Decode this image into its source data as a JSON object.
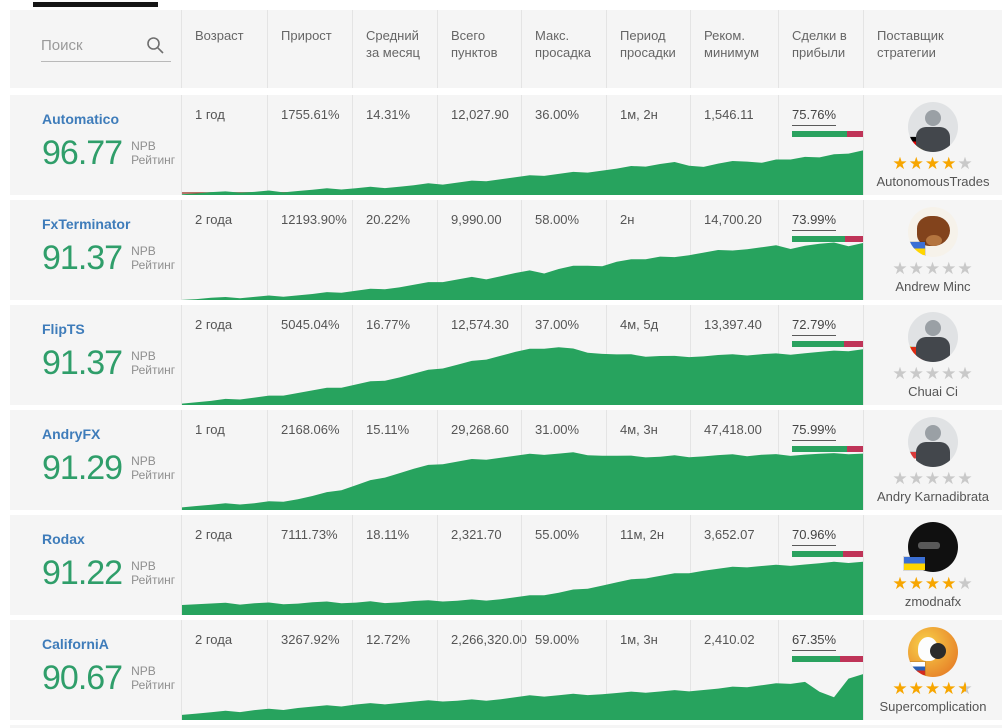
{
  "search": {
    "placeholder": "Поиск"
  },
  "labels": {
    "npb": "NPB",
    "rating": "Рейтинг"
  },
  "columns": [
    "Возраст",
    "Прирост",
    "Средний за месяц",
    "Всего пунктов",
    "Макс. просадка",
    "Период просадки",
    "Реком. минимум",
    "Сделки в прибыли",
    "Поставщик стратегии"
  ],
  "colors": {
    "chart_green": "#27a35e",
    "rating_green": "#2f9e6a",
    "link_blue": "#3e7cba",
    "bar_green": "#2aa25f",
    "bar_red": "#bf3458",
    "star_orange": "#f7a600",
    "row_bg": "#f5f5f5"
  },
  "rows": [
    {
      "name": "Automatico",
      "rating": "96.77",
      "age": "1 год",
      "growth": "1755.61%",
      "monthly": "14.31%",
      "total_pips": "12,027.90",
      "max_drawdown": "36.00%",
      "drawdown_period": "1м, 2н",
      "recommended_min": "1,546.11",
      "profit_trades": "75.76%",
      "profit_trades_pct": 75.76,
      "provider": {
        "name": "AutonomousTrades",
        "stars": 4,
        "flag": "germany",
        "avatar": "suit"
      }
    },
    {
      "name": "FxTerminator",
      "rating": "91.37",
      "age": "2 года",
      "growth": "12193.90%",
      "monthly": "20.22%",
      "total_pips": "9,990.00",
      "max_drawdown": "58.00%",
      "drawdown_period": "2н",
      "recommended_min": "14,700.20",
      "profit_trades": "73.99%",
      "profit_trades_pct": 73.99,
      "provider": {
        "name": "Andrew Minc",
        "stars": 0,
        "flag": "ukraine",
        "avatar": "bull"
      }
    },
    {
      "name": "FlipTS",
      "rating": "91.37",
      "age": "2 года",
      "growth": "5045.04%",
      "monthly": "16.77%",
      "total_pips": "12,574.30",
      "max_drawdown": "37.00%",
      "drawdown_period": "4м, 5д",
      "recommended_min": "13,397.40",
      "profit_trades": "72.79%",
      "profit_trades_pct": 72.79,
      "provider": {
        "name": "Chuai Ci",
        "stars": 0,
        "flag": "china",
        "avatar": "suit"
      }
    },
    {
      "name": "AndryFX",
      "rating": "91.29",
      "age": "1 год",
      "growth": "2168.06%",
      "monthly": "15.11%",
      "total_pips": "29,268.60",
      "max_drawdown": "31.00%",
      "drawdown_period": "4м, 3н",
      "recommended_min": "47,418.00",
      "profit_trades": "75.99%",
      "profit_trades_pct": 75.99,
      "provider": {
        "name": "Andry Karnadibrata",
        "stars": 0,
        "flag": "indonesia",
        "avatar": "suit"
      }
    },
    {
      "name": "Rodax",
      "rating": "91.22",
      "age": "2 года",
      "growth": "7111.73%",
      "monthly": "18.11%",
      "total_pips": "2,321.70",
      "max_drawdown": "55.00%",
      "drawdown_period": "11м, 2н",
      "recommended_min": "3,652.07",
      "profit_trades": "70.96%",
      "profit_trades_pct": 70.96,
      "provider": {
        "name": "zmodnafx",
        "stars": 4,
        "flag": "ukraine",
        "avatar": "dark"
      }
    },
    {
      "name": "CaliforniA",
      "rating": "90.67",
      "age": "2 года",
      "growth": "3267.92%",
      "monthly": "12.72%",
      "total_pips": "2,266,320.00",
      "max_drawdown": "59.00%",
      "drawdown_period": "1м, 3н",
      "recommended_min": "2,410.02",
      "profit_trades": "67.35%",
      "profit_trades_pct": 67.35,
      "provider": {
        "name": "Supercomplication",
        "stars": 4.5,
        "flag": "russia",
        "avatar": "cartoon"
      }
    }
  ],
  "chart_data": [
    {
      "type": "area",
      "name": "Automatico equity curve",
      "y_unit": "normalized %",
      "baseline_accent": 0.48,
      "values": [
        3,
        3,
        4,
        4,
        5,
        5,
        6,
        6,
        7,
        8,
        9,
        10,
        11,
        12,
        13,
        14,
        15,
        17,
        18,
        20,
        22,
        24,
        26,
        28,
        30,
        32,
        34,
        36,
        38,
        40,
        42,
        45,
        47,
        50,
        52,
        49,
        46,
        50,
        53,
        55,
        52,
        56,
        59,
        62,
        60,
        64,
        68,
        72
      ]
    },
    {
      "type": "area",
      "name": "FxTerminator equity curve",
      "y_unit": "normalized %",
      "baseline_accent": 0,
      "values": [
        2,
        2,
        3,
        3,
        4,
        5,
        6,
        7,
        8,
        9,
        11,
        13,
        15,
        17,
        19,
        21,
        24,
        27,
        30,
        33,
        36,
        35,
        39,
        43,
        46,
        44,
        50,
        54,
        57,
        55,
        61,
        64,
        67,
        70,
        68,
        74,
        77,
        80,
        78,
        83,
        85,
        87,
        84,
        88,
        90,
        91,
        88,
        92
      ]
    },
    {
      "type": "area",
      "name": "FlipTS equity curve",
      "y_unit": "normalized %",
      "baseline_accent": 0,
      "values": [
        4,
        5,
        6,
        8,
        10,
        12,
        14,
        17,
        20,
        23,
        26,
        29,
        33,
        37,
        41,
        45,
        50,
        55,
        60,
        65,
        70,
        75,
        80,
        85,
        89,
        92,
        93,
        90,
        86,
        83,
        81,
        80,
        79,
        79,
        78,
        79,
        79,
        80,
        80,
        81,
        82,
        82,
        83,
        84,
        85,
        86,
        88,
        90
      ]
    },
    {
      "type": "area",
      "name": "AndryFX equity curve",
      "y_unit": "normalized %",
      "baseline_accent": 0,
      "values": [
        6,
        7,
        8,
        9,
        10,
        11,
        13,
        15,
        18,
        22,
        27,
        33,
        40,
        47,
        54,
        60,
        66,
        71,
        75,
        78,
        81,
        83,
        85,
        87,
        89,
        90,
        91,
        92,
        90,
        88,
        87,
        86,
        86,
        86,
        87,
        87,
        87,
        88,
        88,
        88,
        89,
        89,
        89,
        90,
        90,
        90,
        91,
        91
      ]
    },
    {
      "type": "area",
      "name": "Rodax equity curve",
      "y_unit": "normalized %",
      "baseline_accent": 0,
      "values": [
        18,
        18,
        18,
        18,
        18,
        19,
        19,
        19,
        19,
        20,
        20,
        20,
        20,
        21,
        21,
        21,
        22,
        22,
        23,
        23,
        24,
        25,
        26,
        28,
        30,
        33,
        36,
        40,
        44,
        48,
        52,
        56,
        60,
        63,
        66,
        69,
        72,
        74,
        76,
        78,
        79,
        80,
        81,
        82,
        83,
        84,
        85,
        86
      ]
    },
    {
      "type": "area",
      "name": "CaliforniA equity curve",
      "y_unit": "normalized %",
      "baseline_accent": 0.17,
      "values": [
        10,
        11,
        12,
        13,
        14,
        16,
        17,
        18,
        20,
        21,
        22,
        23,
        25,
        26,
        27,
        28,
        29,
        30,
        31,
        31,
        32,
        33,
        34,
        36,
        38,
        39,
        40,
        41,
        42,
        42,
        43,
        44,
        45,
        46,
        47,
        48,
        49,
        50,
        52,
        54,
        56,
        58,
        60,
        62,
        45,
        35,
        68,
        74
      ]
    }
  ]
}
